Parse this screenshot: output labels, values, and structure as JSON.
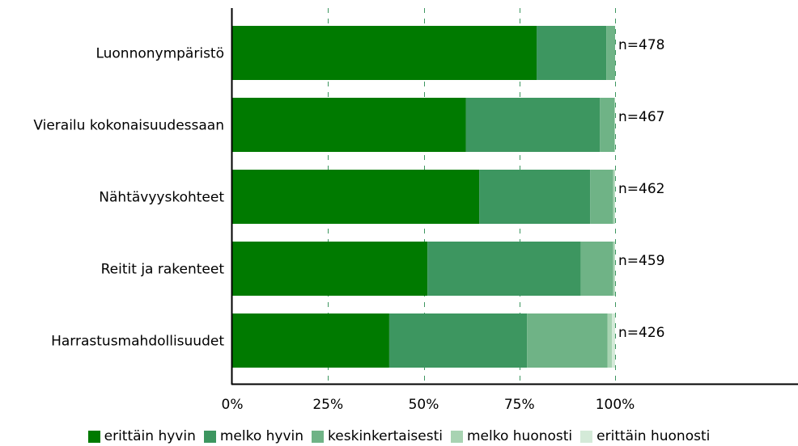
{
  "chart_data": {
    "type": "bar",
    "orientation": "horizontal",
    "stacked": true,
    "categories": [
      "Luonnonympäristö",
      "Vierailu kokonaisuudessaan",
      "Nähtävyyskohteet",
      "Reitit ja rakenteet",
      "Harrastusmahdollisuudet"
    ],
    "n_labels": [
      "n=478",
      "n=467",
      "n=462",
      "n=459",
      "n=426"
    ],
    "series": [
      {
        "name": "erittäin hyvin",
        "color": "#007a00",
        "values": [
          79.5,
          61,
          64.5,
          51,
          41
        ]
      },
      {
        "name": "melko hyvin",
        "color": "#3d9660",
        "values": [
          18.2,
          35,
          29,
          40,
          36
        ]
      },
      {
        "name": "keskinkertaisesti",
        "color": "#6fb386",
        "values": [
          2.3,
          3.8,
          6,
          8.5,
          21
        ]
      },
      {
        "name": "melko huonosti",
        "color": "#a8d3b2",
        "values": [
          0,
          0.2,
          0.4,
          0.4,
          1.2
        ]
      },
      {
        "name": "erittäin huonosti",
        "color": "#d4ead8",
        "values": [
          0,
          0,
          0.1,
          0.1,
          0.8
        ]
      }
    ],
    "xlim": [
      0,
      100
    ],
    "xticks": [
      "0%",
      "25%",
      "50%",
      "75%",
      "100%"
    ],
    "grid": true,
    "legend_position": "bottom"
  }
}
